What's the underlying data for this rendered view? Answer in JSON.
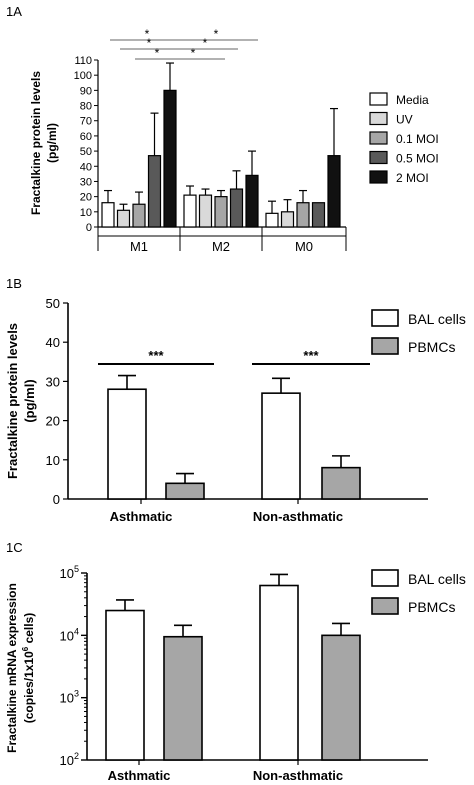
{
  "chart_data": [
    {
      "panel": "1A",
      "type": "bar",
      "ylabel": [
        "Fractalkine protein levels",
        "(pg/ml)"
      ],
      "ylim": [
        0,
        110
      ],
      "yticks": [
        0,
        10,
        20,
        30,
        40,
        50,
        60,
        70,
        80,
        90,
        100,
        110
      ],
      "groups": [
        "M1",
        "M2",
        "M0"
      ],
      "series": [
        {
          "name": "Media",
          "color": "#ffffff",
          "values": [
            16,
            21,
            9
          ],
          "errors": [
            8,
            6,
            8
          ]
        },
        {
          "name": "UV",
          "color": "#d9d9d9",
          "values": [
            11,
            21,
            10
          ],
          "errors": [
            4,
            4,
            8
          ]
        },
        {
          "name": "0.1 MOI",
          "color": "#a6a6a6",
          "values": [
            15,
            20,
            16
          ],
          "errors": [
            8,
            4,
            8
          ]
        },
        {
          "name": "0.5 MOI",
          "color": "#595959",
          "values": [
            47,
            25,
            16
          ],
          "errors": [
            28,
            12,
            0
          ]
        },
        {
          "name": "2 MOI",
          "color": "#111111",
          "values": [
            90,
            34,
            47
          ],
          "errors": [
            18,
            16,
            31
          ]
        }
      ],
      "legend_position": "right",
      "significance": [
        {
          "from": [
            0,
            0
          ],
          "to": [
            1,
            0
          ],
          "label": "*"
        },
        {
          "from": [
            0,
            0
          ],
          "to": [
            1,
            1
          ],
          "label": "*"
        },
        {
          "from": [
            0,
            1
          ],
          "to": [
            1,
            2
          ],
          "label": "*"
        },
        {
          "from": [
            0,
            2
          ],
          "to": [
            1,
            3
          ],
          "label": "*"
        },
        {
          "from": [
            0,
            4
          ],
          "to": [
            1,
            4
          ],
          "label": "*"
        },
        {
          "from": [
            0,
            0
          ],
          "to": [
            2,
            4
          ],
          "label": "*"
        }
      ]
    },
    {
      "panel": "1B",
      "type": "bar",
      "ylabel": [
        "Fractalkine protein levels",
        "(pg/ml)"
      ],
      "ylim": [
        0,
        50
      ],
      "yticks": [
        0,
        10,
        20,
        30,
        40,
        50
      ],
      "groups": [
        "Asthmatic",
        "Non-asthmatic"
      ],
      "series": [
        {
          "name": "BAL cells",
          "color": "#ffffff",
          "values": [
            28,
            27
          ],
          "errors": [
            3.5,
            3.8
          ]
        },
        {
          "name": "PBMCs",
          "color": "#a6a6a6",
          "values": [
            4,
            8
          ],
          "errors": [
            2.5,
            3
          ]
        }
      ],
      "legend_position": "top-right",
      "significance": [
        {
          "group": 0,
          "label": "***"
        },
        {
          "group": 1,
          "label": "***"
        }
      ]
    },
    {
      "panel": "1C",
      "type": "bar",
      "yscale": "log",
      "ylabel": [
        "Fractalkine mRNA expression",
        "(copies/1x10",
        "6",
        " cells)"
      ],
      "ylim": [
        100,
        100000
      ],
      "yticks": [
        {
          "base": "10",
          "exp": "2",
          "value": 100
        },
        {
          "base": "10",
          "exp": "3",
          "value": 1000
        },
        {
          "base": "10",
          "exp": "4",
          "value": 10000
        },
        {
          "base": "10",
          "exp": "5",
          "value": 100000
        }
      ],
      "groups": [
        "Asthmatic",
        "Non-asthmatic"
      ],
      "series": [
        {
          "name": "BAL cells",
          "color": "#ffffff",
          "values": [
            25000,
            63000
          ],
          "errors_upper": [
            37000,
            95000
          ]
        },
        {
          "name": "PBMCs",
          "color": "#a6a6a6",
          "values": [
            9500,
            10000
          ],
          "errors_upper": [
            14500,
            15500
          ]
        }
      ],
      "legend_position": "top-right"
    }
  ]
}
